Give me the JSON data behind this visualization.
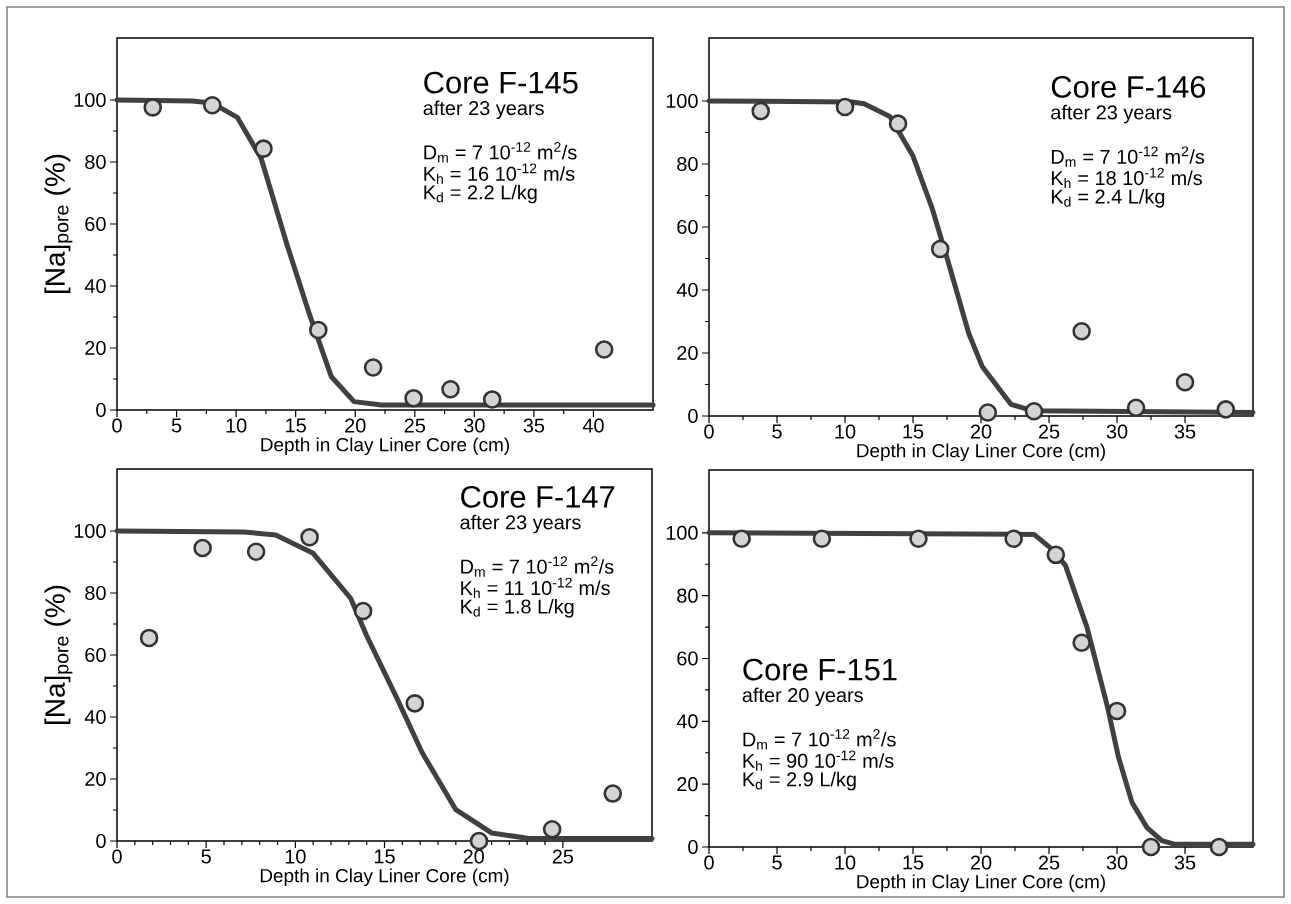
{
  "chart_data": [
    {
      "type": "scatter",
      "title": "Core F-145",
      "subtitle": "after 23 years",
      "xlabel": "Depth in Clay Liner Core  (cm)",
      "ylabel": "[Na]$_{pore}$ (%)",
      "annotations": [
        "D$_{m}$ = 7 10$^{-12}$ m$^{2}$/s",
        "K$_{h}$ = 16 10$^{-12}$ m/s",
        "K$_{d}$ = 2.2 L/kg"
      ],
      "xlim": [
        0,
        45
      ],
      "ylim": [
        0,
        120
      ],
      "xticks": [
        0,
        5,
        10,
        15,
        20,
        25,
        30,
        35,
        40
      ],
      "yticks": [
        0,
        20,
        40,
        60,
        80,
        100
      ],
      "series": [
        {
          "type": "line",
          "color": "#404040",
          "x": [
            0,
            6.3,
            8,
            10.1,
            12.1,
            14.3,
            16.1,
            18,
            19.9,
            22.2,
            45
          ],
          "values": [
            100,
            99.7,
            99,
            94.4,
            81.2,
            53,
            31.5,
            10.7,
            2.7,
            1.6,
            1.6
          ]
        },
        {
          "marker": "circle",
          "color": "#d4d4d4",
          "x": [
            3.0,
            8.0,
            12.3,
            16.9,
            21.5,
            24.9,
            28.0,
            31.5,
            40.9
          ],
          "values": [
            97.6,
            98.3,
            84.3,
            25.8,
            13.7,
            3.8,
            6.7,
            3.4,
            19.5
          ]
        }
      ]
    },
    {
      "type": "scatter",
      "title": "Core F-146",
      "subtitle": "after 23 years",
      "xlabel": "Depth in Clay Liner Core  (cm)",
      "annotations": [
        "D$_{m}$ = 7 10$^{-12}$ m$^{2}$/s",
        "K$_{h}$ = 18 10$^{-12}$ m/s",
        "K$_{d}$ = 2.4 L/kg"
      ],
      "xlim": [
        0,
        40
      ],
      "ylim": [
        0,
        120
      ],
      "xticks": [
        0,
        5,
        10,
        15,
        20,
        25,
        30,
        35
      ],
      "yticks": [
        0,
        20,
        40,
        60,
        80,
        100
      ],
      "series": [
        {
          "type": "line",
          "color": "#404040",
          "x": [
            0,
            10.5,
            11.4,
            13.3,
            15,
            16.4,
            17.6,
            19.1,
            20.1,
            22.2,
            23.8,
            40
          ],
          "values": [
            100,
            99.7,
            99.1,
            95.1,
            82.5,
            66,
            48.7,
            26.2,
            15.6,
            3.7,
            1.7,
            1.1
          ]
        },
        {
          "marker": "circle",
          "color": "#d4d4d4",
          "x": [
            3.8,
            10.0,
            13.9,
            17.0,
            20.5,
            23.9,
            27.4,
            31.4,
            35.0,
            38.0
          ],
          "values": [
            96.8,
            98.1,
            92.8,
            53,
            1.1,
            1.5,
            26.9,
            2.6,
            10.7,
            2.1
          ]
        }
      ]
    },
    {
      "type": "scatter",
      "title": "Core F-147",
      "subtitle": "after 23 years",
      "xlabel": "Depth in Clay Liner Core  (cm)",
      "ylabel": "[Na]$_{pore}$ (%)",
      "annotations": [
        "D$_{m}$ = 7 10$^{-12}$ m$^{2}$/s",
        "K$_{h}$ = 11 10$^{-12}$ m/s",
        "K$_{d}$ = 1.8 L/kg"
      ],
      "xlim": [
        0,
        30
      ],
      "ylim": [
        0,
        120
      ],
      "xticks": [
        0,
        5,
        10,
        15,
        20,
        25
      ],
      "yticks": [
        0,
        20,
        40,
        60,
        80,
        100
      ],
      "series": [
        {
          "type": "line",
          "color": "#404040",
          "x": [
            0,
            7.1,
            8.9,
            11,
            13.1,
            14,
            15.7,
            17.1,
            19,
            21,
            23.1,
            30
          ],
          "values": [
            100,
            99.7,
            98.7,
            92.8,
            78.3,
            66.2,
            46,
            28.6,
            10.1,
            2.6,
            0.8,
            0.8
          ]
        },
        {
          "marker": "circle",
          "color": "#d4d4d4",
          "x": [
            1.8,
            4.8,
            7.8,
            10.8,
            13.8,
            16.7,
            20.3,
            24.4,
            27.8
          ],
          "values": [
            65.5,
            94.5,
            93.3,
            98,
            74.2,
            44.4,
            0,
            3.8,
            15.3
          ]
        }
      ]
    },
    {
      "type": "scatter",
      "title": "Core F-151",
      "subtitle": "after 20 years",
      "xlabel": "Depth in Clay Liner Core  (cm)",
      "annotations": [
        "D$_{m}$ = 7 10$^{-12}$ m$^{2}$/s",
        "K$_{h}$ = 90 10$^{-12}$ m/s",
        "K$_{d}$ = 2.9 L/kg"
      ],
      "xlim": [
        0,
        40
      ],
      "ylim": [
        0,
        120
      ],
      "xticks": [
        0,
        5,
        10,
        15,
        20,
        25,
        30,
        35
      ],
      "yticks": [
        0,
        20,
        40,
        60,
        80,
        100
      ],
      "series": [
        {
          "type": "line",
          "color": "#404040",
          "x": [
            0,
            23.9,
            25.1,
            26.2,
            27.8,
            29.3,
            30.1,
            31.1,
            32.2,
            33.3,
            34.2,
            40
          ],
          "values": [
            100,
            99.5,
            95.2,
            89.7,
            69.8,
            44.6,
            28.7,
            14.2,
            6.2,
            2,
            0.9,
            0.9
          ]
        },
        {
          "marker": "circle",
          "color": "#d4d4d4",
          "x": [
            2.4,
            8.3,
            15.4,
            22.4,
            25.5,
            27.4,
            30.0,
            32.5,
            37.5
          ],
          "values": [
            98.1,
            98.1,
            98.1,
            98.1,
            93,
            65,
            43.3,
            0,
            0
          ]
        }
      ]
    }
  ]
}
